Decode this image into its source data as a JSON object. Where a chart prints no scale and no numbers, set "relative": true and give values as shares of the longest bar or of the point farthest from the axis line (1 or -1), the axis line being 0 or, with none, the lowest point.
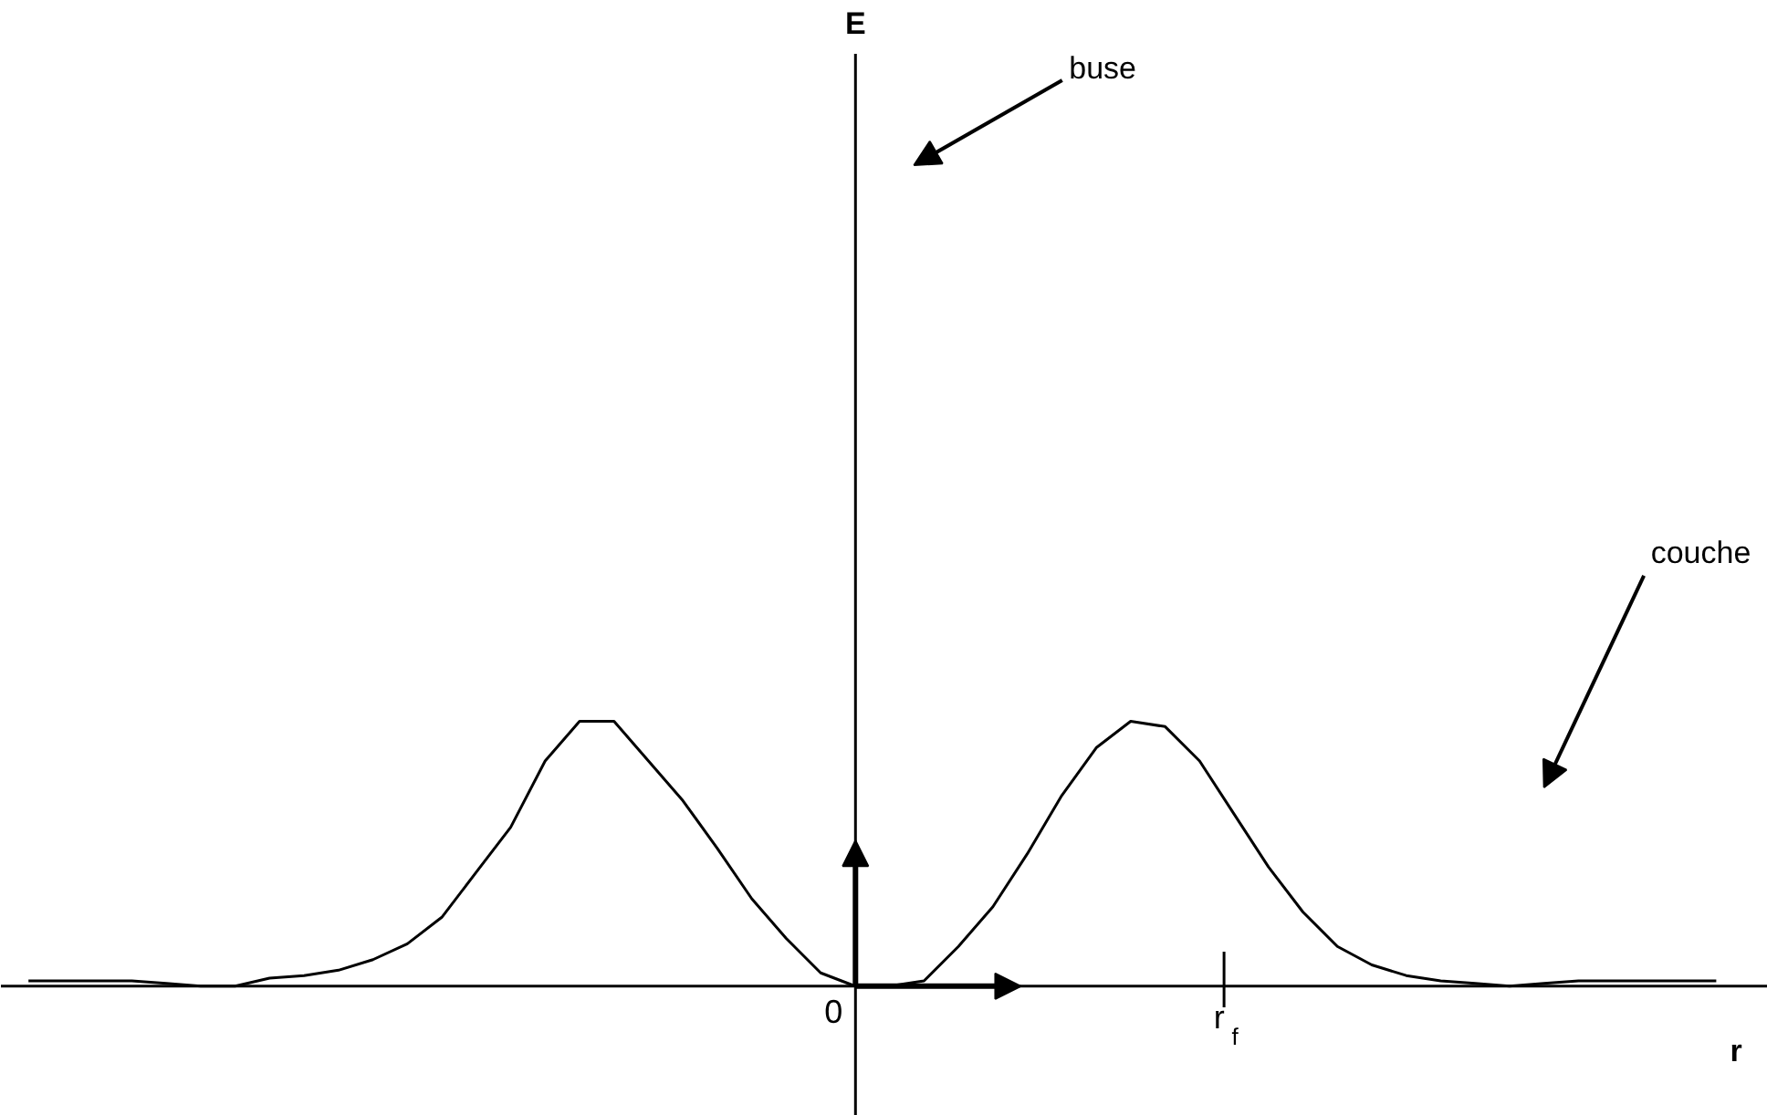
{
  "chart_data": {
    "type": "line",
    "relative": true,
    "categories": [
      null,
      null,
      null,
      null,
      null,
      null,
      null,
      null,
      null,
      null,
      null,
      null,
      null,
      null,
      null,
      null,
      null,
      null,
      null,
      null,
      null,
      null,
      null,
      null,
      null,
      null,
      null,
      null,
      null,
      null,
      null,
      null,
      null,
      null,
      null,
      null,
      null,
      null,
      null,
      null,
      null,
      null,
      null,
      null,
      null,
      null,
      null,
      null,
      null,
      null
    ],
    "series": [
      {
        "color": "#000000",
        "values": [
          0.02,
          0.02,
          0.02,
          0.02,
          0.01,
          0.0,
          0.0,
          0.03,
          0.04,
          0.06,
          0.1,
          0.16,
          0.26,
          0.43,
          0.6,
          0.85,
          1.0,
          1.0,
          0.85,
          0.7,
          0.52,
          0.33,
          0.18,
          0.05,
          0.0,
          0.0,
          0.02,
          0.15,
          0.3,
          0.5,
          0.72,
          0.9,
          1.0,
          0.98,
          0.85,
          0.65,
          0.45,
          0.28,
          0.15,
          0.08,
          0.04,
          0.02,
          0.01,
          0.0,
          0.01,
          0.02,
          0.02,
          0.02,
          0.02,
          0.02
        ]
      }
    ],
    "annotations": [
      "0",
      "r$_{f}$",
      "buse",
      "couche",
      "E",
      "r"
    ],
    "grid": false,
    "marker": "none",
    "line_style": "solid"
  }
}
